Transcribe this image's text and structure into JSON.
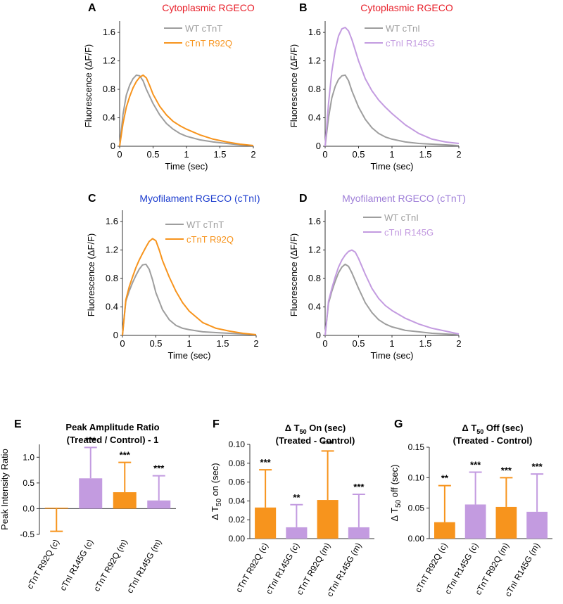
{
  "colors": {
    "wt": "#9e9e9e",
    "orange": "#f7941d",
    "purple": "#c39be0",
    "red_title": "#e8202a",
    "blue_title": "#1f3fcf",
    "purple_title": "#9f7fd8",
    "axis": "#333333"
  },
  "chart_data": [
    {
      "type": "line",
      "panel": "A",
      "title": "Cytoplasmic RGECO",
      "title_color": "red_title",
      "xlabel": "Time (sec)",
      "ylabel": "Fluorescence (ΔF/F)",
      "xlim": [
        0,
        2
      ],
      "ylim": [
        0,
        1.7
      ],
      "xticks": [
        0,
        0.5,
        1,
        1.5,
        2
      ],
      "xtick_labels": [
        "0",
        "0.5",
        "1",
        "1.5",
        "2"
      ],
      "yticks": [
        0,
        0.4,
        0.8,
        1.2,
        1.6
      ],
      "ytick_labels": [
        "0",
        "0.4",
        "0.8",
        "1.2",
        "1.6"
      ],
      "legend": "top-right",
      "series": [
        {
          "name": "WT cTnT",
          "color": "wt",
          "x": [
            0,
            0.05,
            0.1,
            0.15,
            0.2,
            0.25,
            0.3,
            0.35,
            0.4,
            0.5,
            0.6,
            0.7,
            0.8,
            0.9,
            1.0,
            1.2,
            1.4,
            1.6,
            1.8,
            2.0
          ],
          "y": [
            0,
            0.45,
            0.72,
            0.86,
            0.95,
            1.0,
            0.99,
            0.92,
            0.8,
            0.6,
            0.44,
            0.32,
            0.24,
            0.18,
            0.14,
            0.09,
            0.06,
            0.04,
            0.02,
            0.01
          ]
        },
        {
          "name": "cTnT R92Q",
          "color": "orange",
          "x": [
            0,
            0.05,
            0.1,
            0.15,
            0.2,
            0.25,
            0.3,
            0.35,
            0.4,
            0.45,
            0.5,
            0.6,
            0.7,
            0.8,
            0.9,
            1.0,
            1.2,
            1.4,
            1.6,
            1.8,
            2.0
          ],
          "y": [
            0,
            0.32,
            0.55,
            0.7,
            0.82,
            0.91,
            0.97,
            1.0,
            0.96,
            0.85,
            0.73,
            0.56,
            0.44,
            0.35,
            0.29,
            0.24,
            0.16,
            0.1,
            0.06,
            0.03,
            0.01
          ]
        }
      ]
    },
    {
      "type": "line",
      "panel": "B",
      "title": "Cytoplasmic RGECO",
      "title_color": "red_title",
      "xlabel": "Time (sec)",
      "ylabel": "Fluorescence (ΔF/F)",
      "xlim": [
        0,
        2
      ],
      "ylim": [
        0,
        1.7
      ],
      "xticks": [
        0,
        0.5,
        1,
        1.5,
        2
      ],
      "xtick_labels": [
        "0",
        "0.5",
        "1",
        "1.5",
        "2"
      ],
      "yticks": [
        0,
        0.4,
        0.8,
        1.2,
        1.6
      ],
      "ytick_labels": [
        "0",
        "0.4",
        "0.8",
        "1.2",
        "1.6"
      ],
      "legend": "top-right",
      "series": [
        {
          "name": "WT cTnI",
          "color": "wt",
          "x": [
            0,
            0.05,
            0.1,
            0.15,
            0.2,
            0.25,
            0.3,
            0.35,
            0.4,
            0.5,
            0.6,
            0.7,
            0.8,
            0.9,
            1.0,
            1.2,
            1.4,
            1.6,
            1.8,
            2.0
          ],
          "y": [
            0,
            0.4,
            0.68,
            0.84,
            0.94,
            0.99,
            1.0,
            0.92,
            0.78,
            0.55,
            0.38,
            0.26,
            0.18,
            0.13,
            0.1,
            0.06,
            0.04,
            0.03,
            0.02,
            0.01
          ]
        },
        {
          "name": "cTnI R145G",
          "color": "purple",
          "x": [
            0,
            0.05,
            0.1,
            0.15,
            0.2,
            0.25,
            0.3,
            0.35,
            0.4,
            0.45,
            0.5,
            0.6,
            0.7,
            0.8,
            0.9,
            1.0,
            1.2,
            1.4,
            1.6,
            1.8,
            2.0
          ],
          "y": [
            0,
            0.6,
            1.05,
            1.35,
            1.55,
            1.65,
            1.67,
            1.62,
            1.5,
            1.35,
            1.2,
            0.95,
            0.78,
            0.65,
            0.55,
            0.46,
            0.3,
            0.18,
            0.1,
            0.06,
            0.04
          ]
        }
      ]
    },
    {
      "type": "line",
      "panel": "C",
      "title": "Myofilament RGECO (cTnI)",
      "title_color": "blue_title",
      "xlabel": "Time (sec)",
      "ylabel": "Fluorescence (ΔF/F)",
      "xlim": [
        0,
        2
      ],
      "ylim": [
        0,
        1.7
      ],
      "xticks": [
        0,
        0.5,
        1,
        1.5,
        2
      ],
      "xtick_labels": [
        "0",
        "0.5",
        "1",
        "1.5",
        "2"
      ],
      "yticks": [
        0,
        0.4,
        0.8,
        1.2,
        1.6
      ],
      "ytick_labels": [
        "0",
        "0.4",
        "0.8",
        "1.2",
        "1.6"
      ],
      "legend": "top-right",
      "series": [
        {
          "name": "WT cTnT",
          "color": "wt",
          "x": [
            0,
            0.05,
            0.1,
            0.15,
            0.2,
            0.25,
            0.3,
            0.35,
            0.4,
            0.45,
            0.5,
            0.6,
            0.7,
            0.8,
            0.9,
            1.0,
            1.2,
            1.4,
            1.6,
            1.8,
            2.0
          ],
          "y": [
            0,
            0.48,
            0.62,
            0.74,
            0.84,
            0.93,
            0.99,
            1.0,
            0.93,
            0.78,
            0.6,
            0.36,
            0.22,
            0.14,
            0.1,
            0.08,
            0.05,
            0.04,
            0.03,
            0.02,
            0.01
          ]
        },
        {
          "name": "cTnT R92Q",
          "color": "orange",
          "x": [
            0,
            0.05,
            0.1,
            0.15,
            0.2,
            0.25,
            0.3,
            0.35,
            0.4,
            0.45,
            0.5,
            0.55,
            0.6,
            0.7,
            0.8,
            0.9,
            1.0,
            1.2,
            1.4,
            1.6,
            1.8,
            2.0
          ],
          "y": [
            0,
            0.5,
            0.68,
            0.82,
            0.95,
            1.06,
            1.15,
            1.24,
            1.32,
            1.36,
            1.33,
            1.2,
            1.05,
            0.82,
            0.62,
            0.46,
            0.34,
            0.18,
            0.1,
            0.06,
            0.03,
            0.01
          ]
        }
      ]
    },
    {
      "type": "line",
      "panel": "D",
      "title": "Myofilament RGECO (cTnT)",
      "title_color": "purple_title",
      "xlabel": "Time (sec)",
      "ylabel": "Fluorescence (ΔF/F)",
      "xlim": [
        0,
        2
      ],
      "ylim": [
        0,
        1.7
      ],
      "xticks": [
        0,
        0.5,
        1,
        1.5,
        2
      ],
      "xtick_labels": [
        "0",
        "0.5",
        "1",
        "1.5",
        "2"
      ],
      "yticks": [
        0,
        0.4,
        0.8,
        1.2,
        1.6
      ],
      "ytick_labels": [
        "0",
        "0.4",
        "0.8",
        "1.2",
        "1.6"
      ],
      "legend": "top-right",
      "series": [
        {
          "name": "WT cTnI",
          "color": "wt",
          "x": [
            0,
            0.05,
            0.1,
            0.15,
            0.2,
            0.25,
            0.3,
            0.35,
            0.4,
            0.5,
            0.6,
            0.7,
            0.8,
            0.9,
            1.0,
            1.2,
            1.4,
            1.6,
            1.8,
            2.0
          ],
          "y": [
            0,
            0.45,
            0.62,
            0.76,
            0.88,
            0.96,
            1.0,
            0.97,
            0.88,
            0.66,
            0.46,
            0.32,
            0.22,
            0.16,
            0.12,
            0.07,
            0.05,
            0.03,
            0.02,
            0.01
          ]
        },
        {
          "name": "cTnI R145G",
          "color": "purple",
          "x": [
            0,
            0.05,
            0.1,
            0.15,
            0.2,
            0.25,
            0.3,
            0.35,
            0.4,
            0.45,
            0.5,
            0.6,
            0.7,
            0.8,
            0.9,
            1.0,
            1.2,
            1.4,
            1.6,
            1.8,
            2.0
          ],
          "y": [
            0,
            0.48,
            0.66,
            0.82,
            0.96,
            1.06,
            1.13,
            1.18,
            1.2,
            1.17,
            1.08,
            0.86,
            0.66,
            0.52,
            0.42,
            0.35,
            0.24,
            0.16,
            0.1,
            0.06,
            0.02
          ]
        }
      ]
    },
    {
      "type": "bar",
      "panel": "E",
      "title": "Peak Amplitude Ratio",
      "subtitle": "(Treated / Control) - 1",
      "ylabel": "Peak Intensity Ratio",
      "ylim": [
        -0.5,
        1.25
      ],
      "yticks": [
        -0.5,
        0.0,
        0.5,
        1.0
      ],
      "ytick_labels": [
        "-0.5",
        "0.0",
        "0.5",
        "1.0"
      ],
      "categories": [
        "cTnT R92Q (c)",
        "cTnI R145G (c)",
        "cTnT R92Q (m)",
        "cTnI R145G (m)"
      ],
      "values": [
        0.02,
        0.59,
        0.32,
        0.16
      ],
      "errors": [
        0.46,
        0.6,
        0.58,
        0.48
      ],
      "error_direction": [
        "down",
        "up",
        "up",
        "up"
      ],
      "bar_colors": [
        "orange",
        "purple",
        "orange",
        "purple"
      ],
      "significance": [
        "",
        "***",
        "***",
        "***"
      ]
    },
    {
      "type": "bar",
      "panel": "F",
      "title": "Δ T",
      "title_sub": "50",
      "title_rest": " On (sec)",
      "subtitle": "(Treated - Control)",
      "ylabel": "Δ T",
      "ylabel_sub": "50",
      "ylabel_rest": " on (sec)",
      "ylim": [
        0,
        0.1
      ],
      "yticks": [
        0,
        0.02,
        0.04,
        0.06,
        0.08,
        0.1
      ],
      "ytick_labels": [
        "0.00",
        "0.02",
        "0.04",
        "0.06",
        "0.08",
        "0.10"
      ],
      "categories": [
        "cTnT R92Q (c)",
        "cTnI R145G (c)",
        "cTnT R92Q (m)",
        "cTnI R145G (m)"
      ],
      "values": [
        0.033,
        0.012,
        0.041,
        0.012
      ],
      "errors": [
        0.04,
        0.024,
        0.052,
        0.035
      ],
      "error_direction": [
        "up",
        "up",
        "up",
        "up"
      ],
      "bar_colors": [
        "orange",
        "purple",
        "orange",
        "purple"
      ],
      "significance": [
        "***",
        "**",
        "***",
        "***"
      ]
    },
    {
      "type": "bar",
      "panel": "G",
      "title": "Δ T",
      "title_sub": "50",
      "title_rest": " Off (sec)",
      "subtitle": "(Treated - Control)",
      "ylabel": "Δ T",
      "ylabel_sub": "50",
      "ylabel_rest": " off (sec)",
      "ylim": [
        0,
        0.15
      ],
      "yticks": [
        0,
        0.05,
        0.1,
        0.15
      ],
      "ytick_labels": [
        "0.00",
        "0.05",
        "0.10",
        "0.15"
      ],
      "categories": [
        "cTnT R92Q (c)",
        "cTnI R145G (c)",
        "cTnT R92Q (m)",
        "cTnI R145G (m)"
      ],
      "values": [
        0.027,
        0.056,
        0.052,
        0.044
      ],
      "errors": [
        0.06,
        0.053,
        0.048,
        0.062
      ],
      "error_direction": [
        "up",
        "up",
        "up",
        "up"
      ],
      "bar_colors": [
        "orange",
        "purple",
        "orange",
        "purple"
      ],
      "significance": [
        "**",
        "***",
        "***",
        "***"
      ]
    }
  ]
}
